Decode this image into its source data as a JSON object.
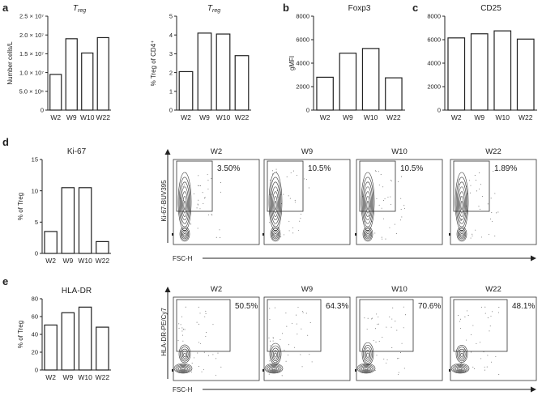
{
  "panel_letters": [
    "a",
    "b",
    "c",
    "d",
    "e"
  ],
  "chart_data": [
    {
      "type": "bar",
      "categories": [
        "W2",
        "W9",
        "W10",
        "W22"
      ],
      "values": [
        9500000.0,
        19000000.0,
        15200000.0,
        19300000.0
      ],
      "title": "Treg",
      "ylabel": "Number cells/L",
      "ylim": [
        0,
        25000000.0
      ],
      "yticks": [
        0,
        5000000.0,
        10000000.0,
        15000000.0,
        20000000.0,
        25000000.0
      ],
      "ytick_labels": [
        "0",
        "5.0 × 10⁶",
        "1.0 × 10⁷",
        "1.5 × 10⁷",
        "2.0 × 10⁷",
        "2.5 × 10⁷"
      ]
    },
    {
      "type": "bar",
      "categories": [
        "W2",
        "W9",
        "W10",
        "W22"
      ],
      "values": [
        2.05,
        4.1,
        4.05,
        2.9
      ],
      "title": "Treg",
      "ylabel": "% Treg of CD4⁺",
      "ylim": [
        0,
        5
      ],
      "yticks": [
        0,
        1,
        2,
        3,
        4,
        5
      ],
      "ytick_labels": [
        "0",
        "1",
        "2",
        "3",
        "4",
        "5"
      ]
    },
    {
      "type": "bar",
      "categories": [
        "W2",
        "W9",
        "W10",
        "W22"
      ],
      "values": [
        2800,
        4850,
        5250,
        2750
      ],
      "title": "Foxp3",
      "ylabel": "gMFI",
      "ylim": [
        0,
        8000
      ],
      "yticks": [
        0,
        2000,
        4000,
        6000,
        8000
      ],
      "ytick_labels": [
        "0",
        "2000",
        "4000",
        "6000",
        "8000"
      ]
    },
    {
      "type": "bar",
      "categories": [
        "W2",
        "W9",
        "W10",
        "W22"
      ],
      "values": [
        6150,
        6500,
        6750,
        6050
      ],
      "title": "CD25",
      "ylabel": "",
      "ylim": [
        0,
        8000
      ],
      "yticks": [
        0,
        2000,
        4000,
        6000,
        8000
      ],
      "ytick_labels": [
        "0",
        "2000",
        "4000",
        "6000",
        "8000"
      ]
    },
    {
      "type": "bar",
      "categories": [
        "W2",
        "W9",
        "W10",
        "W22"
      ],
      "values": [
        3.5,
        10.5,
        10.5,
        1.89
      ],
      "title": "Ki-67",
      "ylabel": "% of Treg",
      "ylim": [
        0,
        15
      ],
      "yticks": [
        0,
        5,
        10,
        15
      ],
      "ytick_labels": [
        "0",
        "5",
        "10",
        "15"
      ]
    },
    {
      "type": "bar",
      "categories": [
        "W2",
        "W9",
        "W10",
        "W22"
      ],
      "values": [
        50.5,
        64.3,
        70.6,
        48.1
      ],
      "title": "HLA-DR",
      "ylabel": "% of Treg",
      "ylim": [
        0,
        80
      ],
      "yticks": [
        0,
        20,
        40,
        60,
        80
      ],
      "ytick_labels": [
        "0",
        "20",
        "40",
        "60",
        "80"
      ]
    }
  ],
  "flow_plots": {
    "ki67": {
      "x_label": "FSC-H",
      "y_label": "Ki-67-BUV395",
      "plots": [
        {
          "title": "W2",
          "percent": "3.50%",
          "fraction": 0.035
        },
        {
          "title": "W9",
          "percent": "10.5%",
          "fraction": 0.105
        },
        {
          "title": "W10",
          "percent": "10.5%",
          "fraction": 0.105
        },
        {
          "title": "W22",
          "percent": "1.89%",
          "fraction": 0.0189
        }
      ]
    },
    "hladr": {
      "x_label": "FSC-H",
      "y_label": "HLA-DR-PE/Cy7",
      "plots": [
        {
          "title": "W2",
          "percent": "50.5%",
          "fraction": 0.505
        },
        {
          "title": "W9",
          "percent": "64.3%",
          "fraction": 0.643
        },
        {
          "title": "W10",
          "percent": "70.6%",
          "fraction": 0.706
        },
        {
          "title": "W22",
          "percent": "48.1%",
          "fraction": 0.481
        }
      ]
    }
  }
}
